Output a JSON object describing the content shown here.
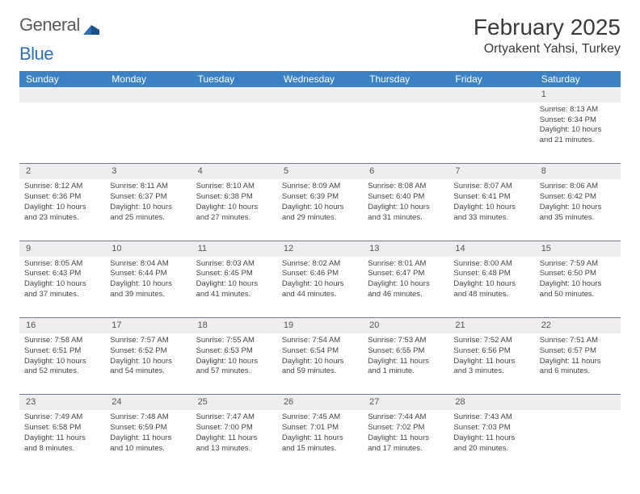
{
  "logo": {
    "text1": "General",
    "text2": "Blue"
  },
  "title": "February 2025",
  "subtitle": "Ortyakent Yahsi, Turkey",
  "colors": {
    "header_bg": "#3b82c4",
    "header_text": "#ffffff",
    "daynum_bg": "#eeeeee",
    "row_border": "#6d7b8a",
    "text": "#444444",
    "logo_gray": "#5a5a5a",
    "logo_blue": "#2d6fb5",
    "page_bg": "#ffffff"
  },
  "day_headers": [
    "Sunday",
    "Monday",
    "Tuesday",
    "Wednesday",
    "Thursday",
    "Friday",
    "Saturday"
  ],
  "weeks": [
    {
      "nums": [
        "",
        "",
        "",
        "",
        "",
        "",
        "1"
      ],
      "cells": [
        null,
        null,
        null,
        null,
        null,
        null,
        {
          "sunrise": "8:13 AM",
          "sunset": "6:34 PM",
          "daylight": "10 hours and 21 minutes."
        }
      ]
    },
    {
      "nums": [
        "2",
        "3",
        "4",
        "5",
        "6",
        "7",
        "8"
      ],
      "cells": [
        {
          "sunrise": "8:12 AM",
          "sunset": "6:36 PM",
          "daylight": "10 hours and 23 minutes."
        },
        {
          "sunrise": "8:11 AM",
          "sunset": "6:37 PM",
          "daylight": "10 hours and 25 minutes."
        },
        {
          "sunrise": "8:10 AM",
          "sunset": "6:38 PM",
          "daylight": "10 hours and 27 minutes."
        },
        {
          "sunrise": "8:09 AM",
          "sunset": "6:39 PM",
          "daylight": "10 hours and 29 minutes."
        },
        {
          "sunrise": "8:08 AM",
          "sunset": "6:40 PM",
          "daylight": "10 hours and 31 minutes."
        },
        {
          "sunrise": "8:07 AM",
          "sunset": "6:41 PM",
          "daylight": "10 hours and 33 minutes."
        },
        {
          "sunrise": "8:06 AM",
          "sunset": "6:42 PM",
          "daylight": "10 hours and 35 minutes."
        }
      ]
    },
    {
      "nums": [
        "9",
        "10",
        "11",
        "12",
        "13",
        "14",
        "15"
      ],
      "cells": [
        {
          "sunrise": "8:05 AM",
          "sunset": "6:43 PM",
          "daylight": "10 hours and 37 minutes."
        },
        {
          "sunrise": "8:04 AM",
          "sunset": "6:44 PM",
          "daylight": "10 hours and 39 minutes."
        },
        {
          "sunrise": "8:03 AM",
          "sunset": "6:45 PM",
          "daylight": "10 hours and 41 minutes."
        },
        {
          "sunrise": "8:02 AM",
          "sunset": "6:46 PM",
          "daylight": "10 hours and 44 minutes."
        },
        {
          "sunrise": "8:01 AM",
          "sunset": "6:47 PM",
          "daylight": "10 hours and 46 minutes."
        },
        {
          "sunrise": "8:00 AM",
          "sunset": "6:48 PM",
          "daylight": "10 hours and 48 minutes."
        },
        {
          "sunrise": "7:59 AM",
          "sunset": "6:50 PM",
          "daylight": "10 hours and 50 minutes."
        }
      ]
    },
    {
      "nums": [
        "16",
        "17",
        "18",
        "19",
        "20",
        "21",
        "22"
      ],
      "cells": [
        {
          "sunrise": "7:58 AM",
          "sunset": "6:51 PM",
          "daylight": "10 hours and 52 minutes."
        },
        {
          "sunrise": "7:57 AM",
          "sunset": "6:52 PM",
          "daylight": "10 hours and 54 minutes."
        },
        {
          "sunrise": "7:55 AM",
          "sunset": "6:53 PM",
          "daylight": "10 hours and 57 minutes."
        },
        {
          "sunrise": "7:54 AM",
          "sunset": "6:54 PM",
          "daylight": "10 hours and 59 minutes."
        },
        {
          "sunrise": "7:53 AM",
          "sunset": "6:55 PM",
          "daylight": "11 hours and 1 minute."
        },
        {
          "sunrise": "7:52 AM",
          "sunset": "6:56 PM",
          "daylight": "11 hours and 3 minutes."
        },
        {
          "sunrise": "7:51 AM",
          "sunset": "6:57 PM",
          "daylight": "11 hours and 6 minutes."
        }
      ]
    },
    {
      "nums": [
        "23",
        "24",
        "25",
        "26",
        "27",
        "28",
        ""
      ],
      "cells": [
        {
          "sunrise": "7:49 AM",
          "sunset": "6:58 PM",
          "daylight": "11 hours and 8 minutes."
        },
        {
          "sunrise": "7:48 AM",
          "sunset": "6:59 PM",
          "daylight": "11 hours and 10 minutes."
        },
        {
          "sunrise": "7:47 AM",
          "sunset": "7:00 PM",
          "daylight": "11 hours and 13 minutes."
        },
        {
          "sunrise": "7:45 AM",
          "sunset": "7:01 PM",
          "daylight": "11 hours and 15 minutes."
        },
        {
          "sunrise": "7:44 AM",
          "sunset": "7:02 PM",
          "daylight": "11 hours and 17 minutes."
        },
        {
          "sunrise": "7:43 AM",
          "sunset": "7:03 PM",
          "daylight": "11 hours and 20 minutes."
        },
        null
      ]
    }
  ],
  "labels": {
    "sunrise": "Sunrise:",
    "sunset": "Sunset:",
    "daylight": "Daylight:"
  }
}
